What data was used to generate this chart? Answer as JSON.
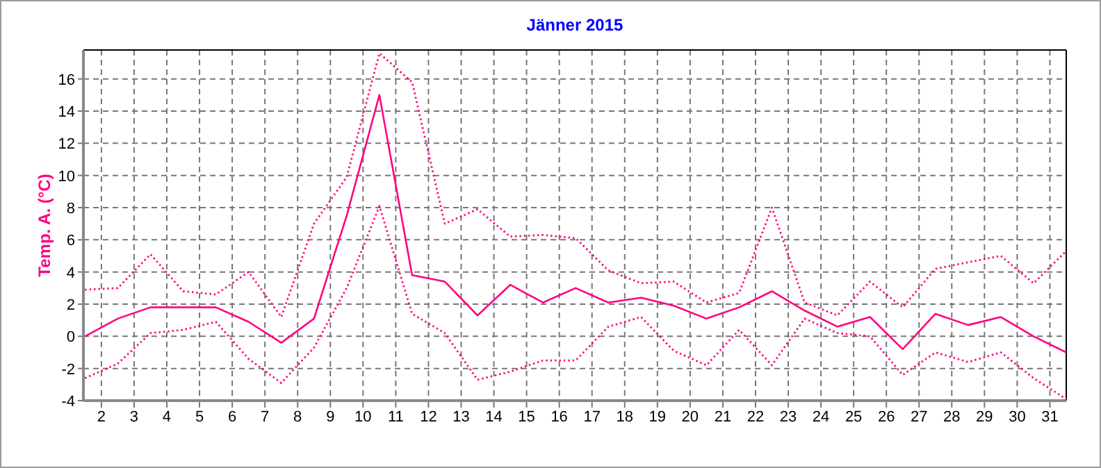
{
  "chart_data": {
    "type": "line",
    "title": "Jänner 2015",
    "ylabel": "Temp. A. (°C)",
    "x": [
      1.5,
      2.5,
      3.5,
      4.5,
      5.5,
      6.5,
      7.5,
      8.5,
      9.5,
      10.5,
      11.5,
      12.5,
      13.5,
      14.5,
      15.5,
      16.5,
      17.5,
      18.5,
      19.5,
      20.5,
      21.5,
      22.5,
      23.5,
      24.5,
      25.5,
      26.5,
      27.5,
      28.5,
      29.5,
      30.5,
      31.5
    ],
    "series": [
      {
        "color": "#ff0080",
        "line_style": "dotted",
        "values": [
          2.9,
          3.0,
          5.1,
          2.8,
          2.6,
          4.0,
          1.2,
          7.0,
          9.9,
          17.6,
          15.8,
          7.0,
          7.9,
          6.2,
          6.3,
          6.1,
          4.1,
          3.3,
          3.4,
          2.1,
          2.7,
          8.0,
          2.1,
          1.3,
          3.4,
          1.8,
          4.2,
          4.6,
          5.0,
          3.3,
          5.3
        ]
      },
      {
        "color": "#ff0080",
        "line_style": "solid",
        "values": [
          0.0,
          1.1,
          1.8,
          1.8,
          1.8,
          0.9,
          -0.4,
          1.1,
          7.5,
          15.0,
          3.8,
          3.4,
          1.3,
          3.2,
          2.1,
          3.0,
          2.1,
          2.4,
          1.9,
          1.1,
          1.8,
          2.8,
          1.6,
          0.6,
          1.2,
          -0.8,
          1.4,
          0.7,
          1.2,
          0.0,
          -1.0
        ]
      },
      {
        "color": "#ff0080",
        "line_style": "dotted",
        "values": [
          -2.6,
          -1.7,
          0.2,
          0.4,
          0.9,
          -1.4,
          -2.9,
          -0.7,
          3.0,
          8.1,
          1.4,
          0.2,
          -2.7,
          -2.2,
          -1.5,
          -1.5,
          0.6,
          1.2,
          -0.9,
          -1.8,
          0.4,
          -1.8,
          1.1,
          0.2,
          0.0,
          -2.4,
          -1.0,
          -1.6,
          -1.0,
          -2.6,
          -3.9
        ]
      }
    ],
    "xlim": [
      1.45,
      31.5
    ],
    "xticks": [
      2,
      3,
      4,
      5,
      6,
      7,
      8,
      9,
      10,
      11,
      12,
      13,
      14,
      15,
      16,
      17,
      18,
      19,
      20,
      21,
      22,
      23,
      24,
      25,
      26,
      27,
      28,
      29,
      30,
      31
    ],
    "ylim": [
      -4,
      17.8
    ],
    "yticks": [
      -4,
      -2,
      0,
      2,
      4,
      6,
      8,
      10,
      12,
      14,
      16
    ],
    "grid": true
  }
}
